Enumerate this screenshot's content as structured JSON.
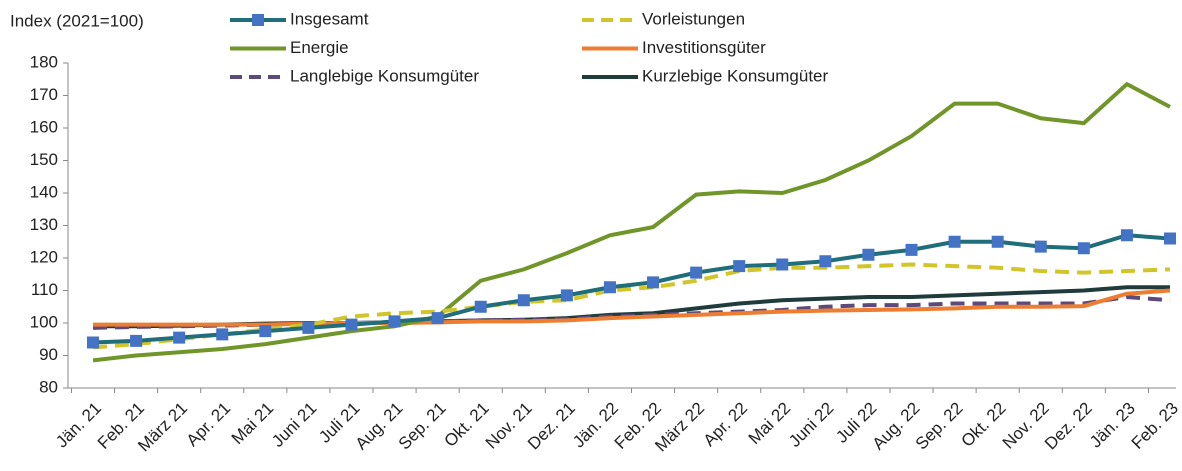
{
  "chart_data": {
    "type": "line",
    "y_label": "Index (2021=100)",
    "categories": [
      "Jän. 21",
      "Feb. 21",
      "März 21",
      "Apr. 21",
      "Mai 21",
      "Juni 21",
      "Juli 21",
      "Aug. 21",
      "Sep. 21",
      "Okt. 21",
      "Nov. 21",
      "Dez. 21",
      "Jän. 22",
      "Feb. 22",
      "März 22",
      "Apr. 22",
      "Mai 22",
      "Juni 22",
      "Juli 22",
      "Aug. 22",
      "Sep. 22",
      "Okt. 22",
      "Nov. 22",
      "Dez. 22",
      "Jän. 23",
      "Feb. 23"
    ],
    "ylim": [
      80,
      180
    ],
    "yticks": [
      80,
      90,
      100,
      110,
      120,
      130,
      140,
      150,
      160,
      170,
      180
    ],
    "grid": false,
    "series": [
      {
        "name": "Insgesamt",
        "color": "#1f6e7a",
        "marker": "square",
        "marker_color": "#4472c4",
        "dashed": false,
        "values": [
          94,
          94.5,
          95.5,
          96.5,
          97.5,
          98.5,
          99.5,
          100.5,
          101.5,
          105,
          107,
          108.5,
          111,
          112.5,
          115.5,
          117.5,
          118,
          119,
          121,
          122.5,
          125,
          125,
          123.5,
          123,
          127,
          126
        ]
      },
      {
        "name": "Vorleistungen",
        "color": "#d1c52a",
        "dashed": true,
        "values": [
          92.5,
          93.5,
          95,
          96.5,
          98,
          99.5,
          102,
          103,
          103.5,
          105,
          106.5,
          107,
          110,
          111,
          113,
          116,
          117,
          117,
          117.5,
          118,
          117.5,
          117,
          116,
          115.5,
          116,
          116.5
        ]
      },
      {
        "name": "Energie",
        "color": "#70962a",
        "dashed": false,
        "values": [
          88.5,
          90,
          91,
          92,
          93.5,
          95.5,
          97.5,
          99,
          102,
          113,
          116.5,
          121.5,
          127,
          129.5,
          139.5,
          140.5,
          140,
          144,
          150,
          157.5,
          167.5,
          167.5,
          163,
          161.5,
          173.5,
          166.5
        ]
      },
      {
        "name": "Investitionsgüter",
        "color": "#ed7d31",
        "dashed": false,
        "values": [
          99.5,
          99.5,
          99.5,
          99.5,
          99.5,
          99.8,
          100,
          100,
          100.2,
          100.5,
          100.5,
          100.8,
          101.5,
          102,
          102.5,
          103,
          103.5,
          103.8,
          104,
          104.2,
          104.5,
          105,
          105,
          105.2,
          109,
          110
        ]
      },
      {
        "name": "Langlebige Konsumgüter",
        "color": "#5b4a7a",
        "dashed": true,
        "values": [
          98.5,
          98.8,
          99,
          99.2,
          99.5,
          99.8,
          100,
          100.2,
          100.5,
          100.8,
          101,
          101.2,
          102,
          102.5,
          103,
          103.5,
          104,
          105,
          105.5,
          105.5,
          106,
          106,
          106,
          106,
          108,
          107
        ]
      },
      {
        "name": "Kurzlebige Konsumgüter",
        "color": "#1f3b3b",
        "dashed": false,
        "values": [
          99,
          99,
          99.2,
          99.5,
          99.8,
          100,
          100,
          100.2,
          100.5,
          100.8,
          101,
          101.5,
          102.5,
          103,
          104.5,
          106,
          107,
          107.5,
          108,
          108,
          108.5,
          109,
          109.5,
          110,
          111,
          111
        ]
      }
    ]
  }
}
